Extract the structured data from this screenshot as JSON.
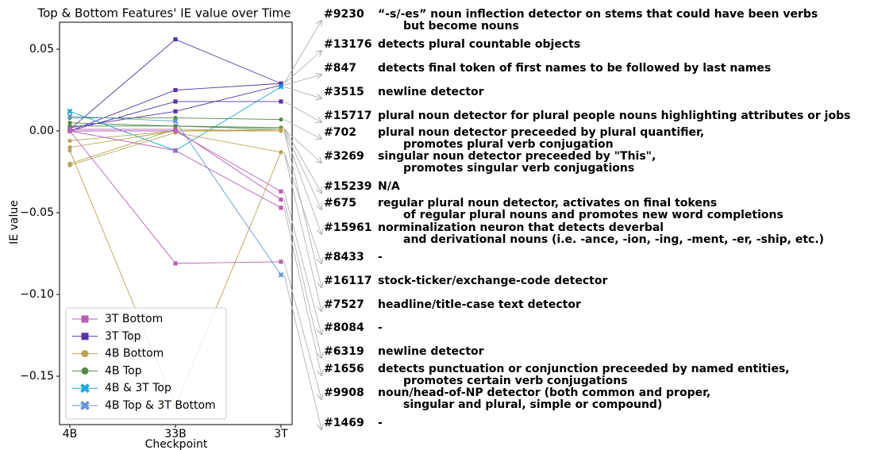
{
  "chart_data": {
    "type": "line",
    "title": "Top & Bottom Features' IE value over Time",
    "xlabel": "Checkpoint",
    "ylabel": "IE value",
    "categories": [
      "4B",
      "33B",
      "3T"
    ],
    "ylim": [
      -0.1796,
      0.0665
    ],
    "yticks": [
      {
        "value": -0.15,
        "label": "−0.15"
      },
      {
        "value": -0.1,
        "label": "−0.10"
      },
      {
        "value": -0.05,
        "label": "−0.05"
      },
      {
        "value": 0,
        "label": "0.00"
      },
      {
        "value": 0.05,
        "label": "0.05"
      }
    ],
    "legend_position": "lower left",
    "legend": [
      {
        "name": "3T Bottom",
        "color": "#b95fb6",
        "marker": "square"
      },
      {
        "name": "3T Top",
        "color": "#5633a8",
        "marker": "square"
      },
      {
        "name": "4B Bottom",
        "color": "#b9a552",
        "marker": "circle"
      },
      {
        "name": "4B Top",
        "color": "#4f8a48",
        "marker": "circle"
      },
      {
        "name": "4B & 3T Top",
        "color": "#1aa8e0",
        "marker": "x"
      },
      {
        "name": "4B Top & 3T Bottom",
        "color": "#6495dd",
        "marker": "x"
      }
    ],
    "features": [
      {
        "id": "#9230",
        "description": [
          "“-s/-es” noun inflection detector on stems that could have been verbs",
          "but become nouns"
        ],
        "color": "#5633a8",
        "marker": "square",
        "values": [
          0.001,
          0.056,
          0.029
        ]
      },
      {
        "id": "#13176",
        "description": [
          "detects plural countable objects"
        ],
        "color": "#5633a8",
        "marker": "square",
        "values": [
          0.0,
          0.025,
          0.029
        ]
      },
      {
        "id": "#847",
        "description": [
          "detects final token of first names to be followed by last names"
        ],
        "color": "#5633a8",
        "marker": "square",
        "values": [
          0.002,
          0.012,
          0.028
        ]
      },
      {
        "id": "#3515",
        "description": [
          "newline detector"
        ],
        "color": "#1aa8e0",
        "marker": "x",
        "values": [
          0.012,
          -0.012,
          0.027
        ]
      },
      {
        "id": "#15717",
        "description": [
          "plural noun detector for plural people nouns highlighting attributes or jobs"
        ],
        "color": "#5633a8",
        "marker": "square",
        "values": [
          0.0,
          0.018,
          0.018
        ]
      },
      {
        "id": "#702",
        "description": [
          "plural noun detector preceeded by plural quantifier,",
          "promotes plural verb conjugation"
        ],
        "color": "#4f8a48",
        "marker": "circle",
        "values": [
          0.008,
          0.008,
          0.007
        ]
      },
      {
        "id": "#3269",
        "description": [
          "singular noun detector preceeded by \"This\",",
          "promotes singular verb conjugations"
        ],
        "color": "#4f8a48",
        "marker": "circle",
        "values": [
          0.005,
          0.003,
          0.001
        ]
      },
      {
        "id": "#15239",
        "description": [
          "N/A"
        ],
        "color": "#4f8a48",
        "marker": "circle",
        "values": [
          0.003,
          0.003,
          0.002
        ]
      },
      {
        "id": "#675",
        "description": [
          "regular plural noun detector, activates on  final tokens",
          "of regular plural nouns and promotes new word completions"
        ],
        "color": "#b9a552",
        "marker": "circle",
        "values": [
          -0.006,
          0.0,
          0.001
        ]
      },
      {
        "id": "#15961",
        "description": [
          "norminalization neuron that detects deverbal",
          "and derivational nouns (i.e. -ance, -ion, -ing, -ment, -er, -ship, etc.)"
        ],
        "color": "#b9a552",
        "marker": "circle",
        "values": [
          -0.01,
          0.0,
          0.0
        ]
      },
      {
        "id": "#8433",
        "description": [
          "-"
        ],
        "color": "#b9a552",
        "marker": "circle",
        "values": [
          -0.012,
          -0.168,
          -0.013
        ]
      },
      {
        "id": "#16117",
        "description": [
          "stock-ticker/exchange-code detector"
        ],
        "color": "#b9a552",
        "marker": "circle",
        "values": [
          -0.02,
          0.001,
          0.0
        ]
      },
      {
        "id": "#7527",
        "description": [
          "headline/title-case text detector"
        ],
        "color": "#b9a552",
        "marker": "circle",
        "values": [
          -0.021,
          -0.001,
          -0.013
        ]
      },
      {
        "id": "#8084",
        "description": [
          "-"
        ],
        "color": "#b95fb6",
        "marker": "square",
        "values": [
          0.0,
          0.0,
          -0.037
        ]
      },
      {
        "id": "#6319",
        "description": [
          "newline detector"
        ],
        "color": "#b95fb6",
        "marker": "square",
        "values": [
          0.001,
          0.001,
          -0.042
        ]
      },
      {
        "id": "#1656",
        "description": [
          "detects punctuation or conjunction preceeded by named entities,",
          "promotes certain verb conjugations"
        ],
        "color": "#b95fb6",
        "marker": "square",
        "values": [
          0.0,
          -0.012,
          -0.047
        ]
      },
      {
        "id": "#9908",
        "description": [
          "noun/head-of-NP detector (both common and proper,",
          "singular and plural, simple or compound)"
        ],
        "color": "#b95fb6",
        "marker": "square",
        "values": [
          0.0,
          -0.081,
          -0.08
        ]
      },
      {
        "id": "#1469",
        "description": [
          "-"
        ],
        "color": "#6495dd",
        "marker": "x",
        "values": [
          0.009,
          0.006,
          -0.088
        ]
      }
    ]
  }
}
